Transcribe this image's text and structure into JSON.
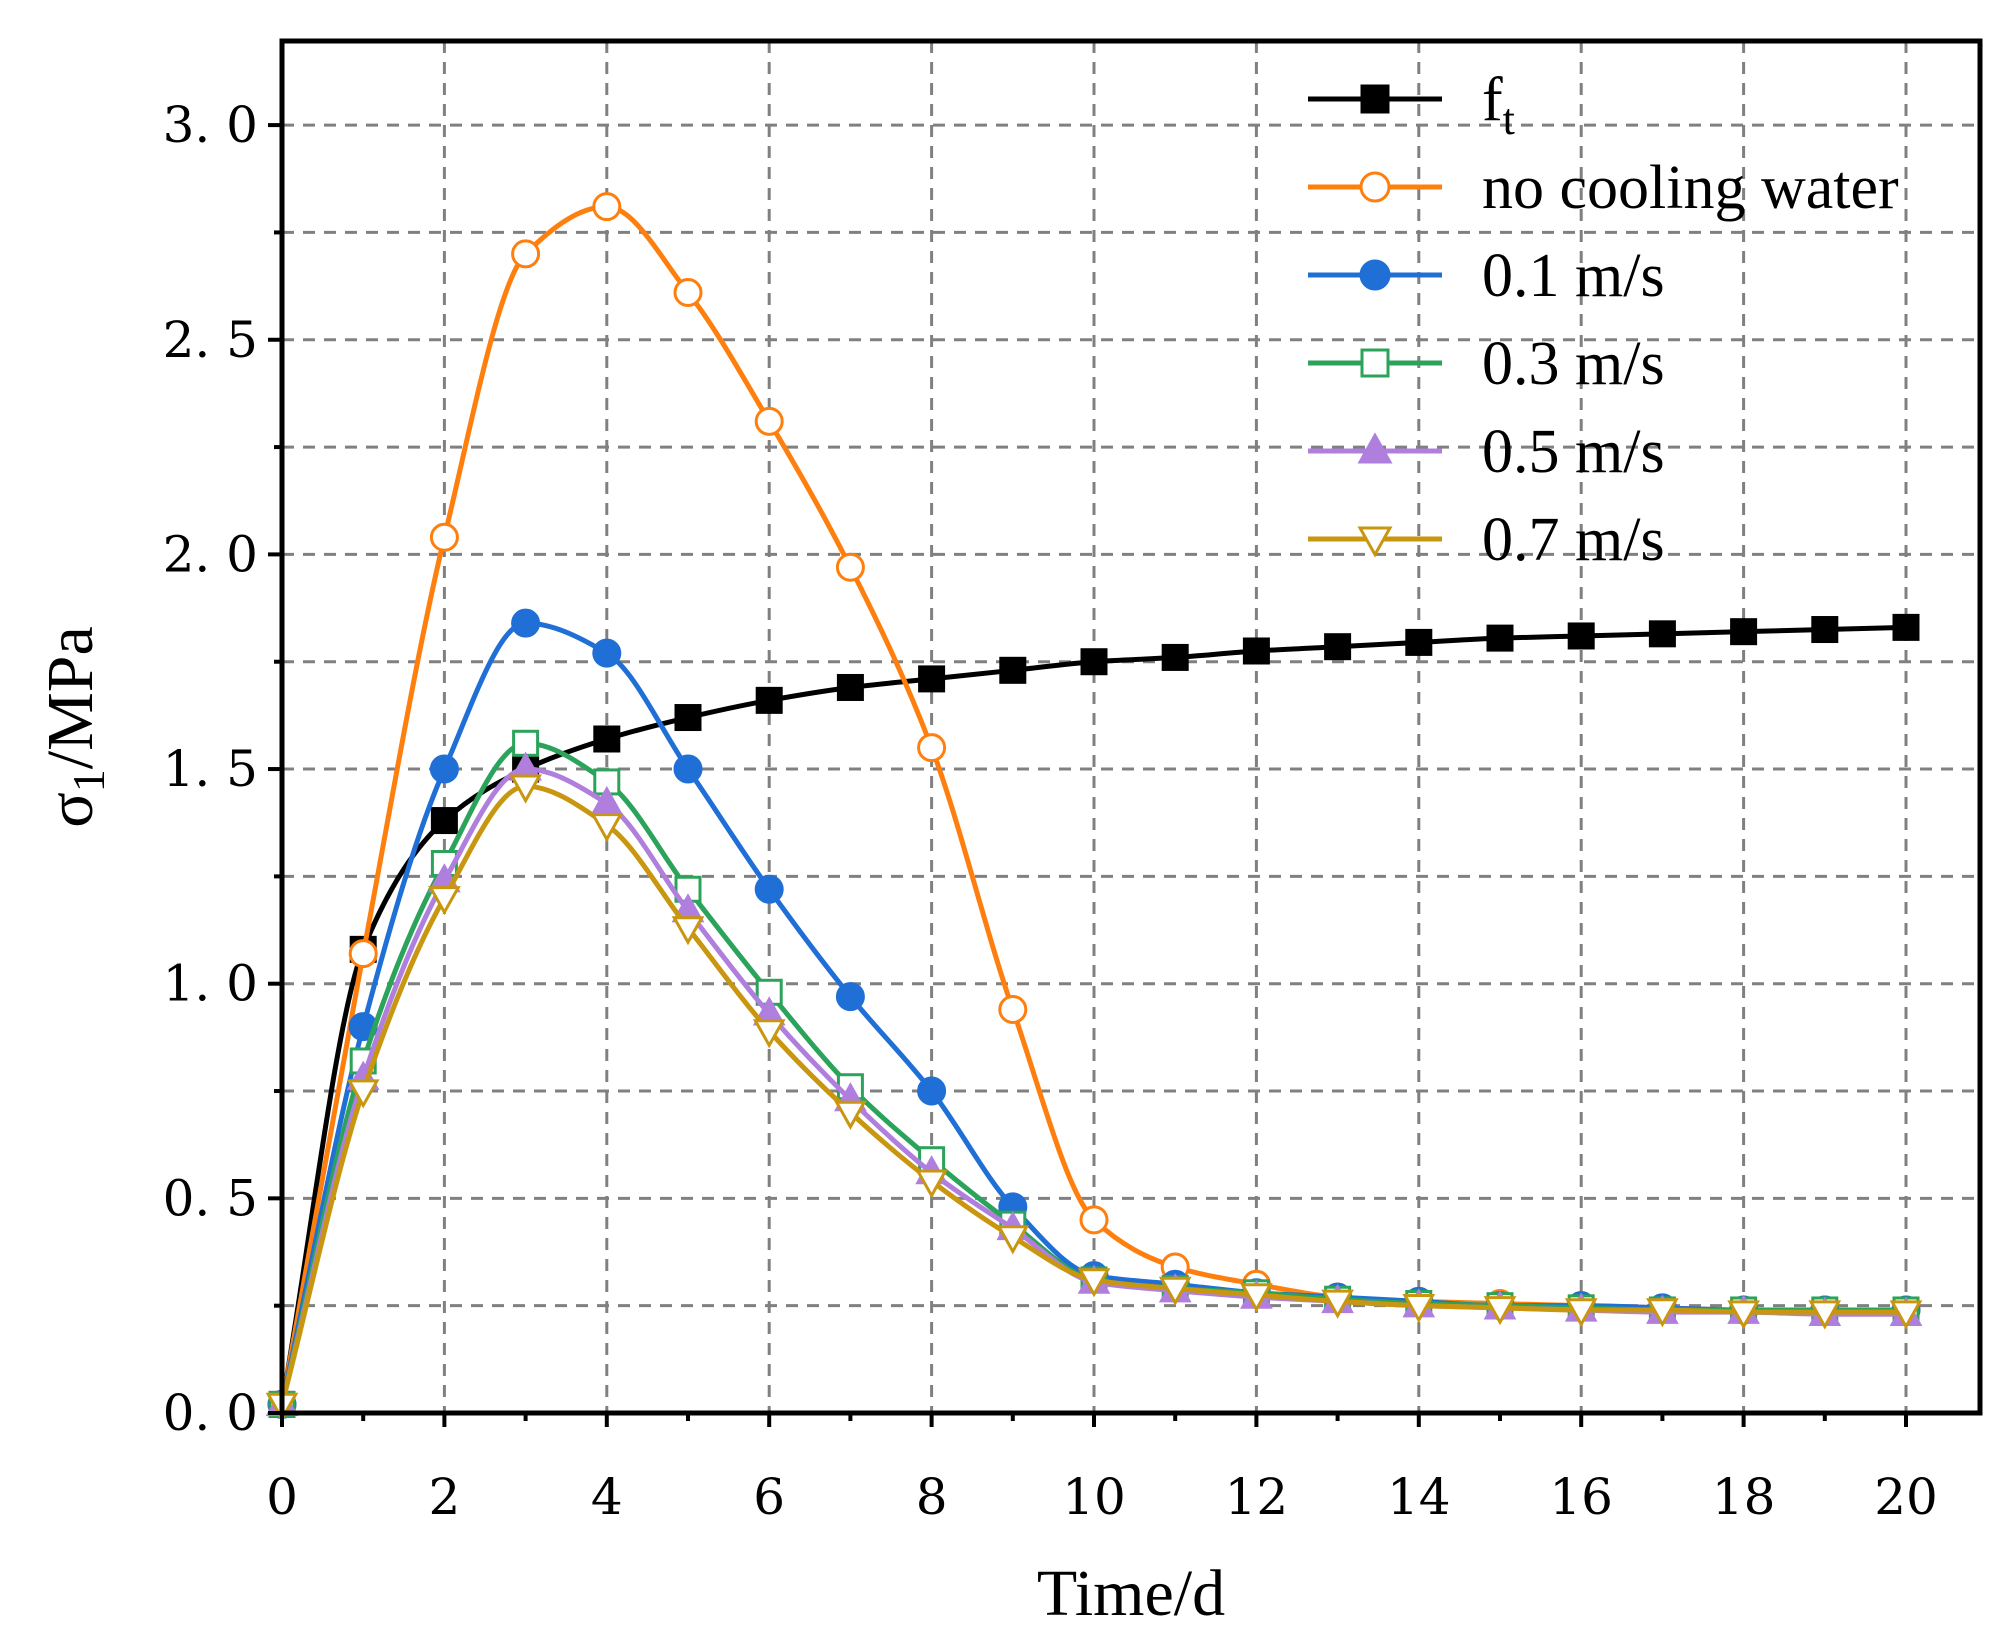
{
  "chart_data": {
    "type": "line",
    "xlabel": "Time/d",
    "ylabel": {
      "base": "σ",
      "sub": "1",
      "rest": "/MPa"
    },
    "xlim": [
      0,
      21
    ],
    "ylim": [
      0,
      3.2
    ],
    "x_ticks": [
      0,
      2,
      4,
      6,
      8,
      10,
      12,
      14,
      16,
      18,
      20
    ],
    "x_tick_labels": [
      "0",
      "2",
      "4",
      "6",
      "8",
      "10",
      "12",
      "14",
      "16",
      "18",
      "20"
    ],
    "y_ticks": [
      0,
      0.5,
      1.0,
      1.5,
      2.0,
      2.5,
      3.0
    ],
    "y_tick_labels": [
      "0. 0",
      "0. 5",
      "1. 0",
      "1. 5",
      "2. 0",
      "2. 5",
      "3. 0"
    ],
    "grid": true,
    "legend_position": "top-right",
    "x": [
      0,
      1,
      2,
      3,
      4,
      5,
      6,
      7,
      8,
      9,
      10,
      11,
      12,
      13,
      14,
      15,
      16,
      17,
      18,
      19,
      20
    ],
    "series": [
      {
        "name": "f",
        "name_sub": "t",
        "color": "#000000",
        "marker": "square",
        "filled": true,
        "values": [
          0.02,
          1.08,
          1.38,
          1.5,
          1.57,
          1.62,
          1.66,
          1.69,
          1.71,
          1.73,
          1.75,
          1.76,
          1.775,
          1.785,
          1.795,
          1.805,
          1.81,
          1.815,
          1.82,
          1.825,
          1.83
        ]
      },
      {
        "name": "no cooling water",
        "color": "#FF7F0E",
        "marker": "circle",
        "filled": false,
        "values": [
          0.02,
          1.07,
          2.04,
          2.7,
          2.81,
          2.61,
          2.31,
          1.97,
          1.55,
          0.94,
          0.45,
          0.34,
          0.3,
          0.27,
          0.26,
          0.255,
          0.25,
          0.245,
          0.24,
          0.24,
          0.24
        ]
      },
      {
        "name": "0.1 m/s",
        "color": "#1F6FD6",
        "marker": "circle",
        "filled": true,
        "values": [
          0.02,
          0.9,
          1.5,
          1.84,
          1.77,
          1.5,
          1.22,
          0.97,
          0.75,
          0.48,
          0.32,
          0.3,
          0.28,
          0.27,
          0.26,
          0.25,
          0.25,
          0.245,
          0.24,
          0.24,
          0.24
        ]
      },
      {
        "name": "0.3 m/s",
        "color": "#2CA35A",
        "marker": "square",
        "filled": false,
        "values": [
          0.02,
          0.82,
          1.28,
          1.56,
          1.47,
          1.22,
          0.98,
          0.76,
          0.59,
          0.44,
          0.31,
          0.29,
          0.28,
          0.265,
          0.255,
          0.25,
          0.245,
          0.24,
          0.24,
          0.24,
          0.24
        ]
      },
      {
        "name": "0.5 m/s",
        "color": "#B07FDD",
        "marker": "triangle-up",
        "filled": true,
        "values": [
          0.02,
          0.78,
          1.24,
          1.5,
          1.42,
          1.17,
          0.93,
          0.73,
          0.56,
          0.43,
          0.305,
          0.285,
          0.27,
          0.26,
          0.25,
          0.245,
          0.24,
          0.235,
          0.235,
          0.23,
          0.23
        ]
      },
      {
        "name": "0.7 m/s",
        "color": "#C9960F",
        "marker": "triangle-down",
        "filled": false,
        "values": [
          0.02,
          0.75,
          1.2,
          1.46,
          1.37,
          1.13,
          0.89,
          0.7,
          0.54,
          0.41,
          0.31,
          0.29,
          0.275,
          0.26,
          0.25,
          0.245,
          0.24,
          0.24,
          0.235,
          0.235,
          0.235
        ]
      }
    ]
  }
}
